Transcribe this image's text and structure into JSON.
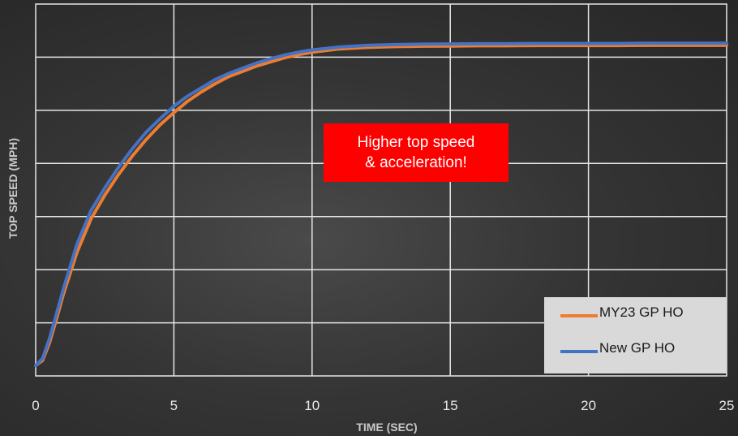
{
  "chart_data": {
    "type": "line",
    "xlabel": "TIME (SEC)",
    "ylabel": "TOP SPEED (MPH)",
    "xlim": [
      0,
      25
    ],
    "x_ticks": [
      "0",
      "5",
      "10",
      "15",
      "20",
      "25"
    ],
    "y_tick_labels_shown": false,
    "grid": true,
    "legend_position": "bottom-right",
    "annotation": {
      "lines": [
        "Higher top speed",
        "& acceleration!"
      ],
      "color": "#ff0000"
    },
    "series": [
      {
        "name": "MY23 GP HO",
        "color": "#ed7d31",
        "x": [
          0,
          0.25,
          0.5,
          0.75,
          1,
          1.5,
          2,
          2.5,
          3,
          3.5,
          4,
          4.5,
          5,
          5.5,
          6,
          6.5,
          7,
          7.5,
          8,
          8.5,
          9,
          9.5,
          10,
          11,
          12,
          13,
          14,
          15,
          16,
          17,
          18,
          19,
          20,
          21,
          22,
          23,
          24,
          25
        ],
        "y": [
          0.05,
          0.075,
          0.16,
          0.275,
          0.395,
          0.6,
          0.76,
          0.875,
          0.975,
          1.065,
          1.145,
          1.215,
          1.275,
          1.33,
          1.375,
          1.415,
          1.45,
          1.475,
          1.5,
          1.52,
          1.54,
          1.555,
          1.567,
          1.583,
          1.59,
          1.594,
          1.596,
          1.597,
          1.598,
          1.598,
          1.599,
          1.599,
          1.599,
          1.599,
          1.6,
          1.6,
          1.6,
          1.6
        ]
      },
      {
        "name": "New GP HO",
        "color": "#4472c4",
        "x": [
          0,
          0.25,
          0.5,
          0.75,
          1,
          1.5,
          2,
          2.5,
          3,
          3.5,
          4,
          4.5,
          5,
          5.5,
          6,
          6.5,
          7,
          7.5,
          8,
          8.5,
          9,
          9.5,
          10,
          11,
          12,
          13,
          14,
          15,
          16,
          17,
          18,
          19,
          20,
          21,
          22,
          23,
          24,
          25
        ],
        "y": [
          0.05,
          0.085,
          0.18,
          0.3,
          0.42,
          0.64,
          0.8,
          0.91,
          1.01,
          1.1,
          1.18,
          1.245,
          1.305,
          1.355,
          1.395,
          1.435,
          1.465,
          1.49,
          1.515,
          1.535,
          1.553,
          1.567,
          1.578,
          1.592,
          1.6,
          1.604,
          1.606,
          1.607,
          1.608,
          1.608,
          1.609,
          1.609,
          1.609,
          1.609,
          1.61,
          1.61,
          1.61,
          1.61
        ]
      }
    ]
  }
}
